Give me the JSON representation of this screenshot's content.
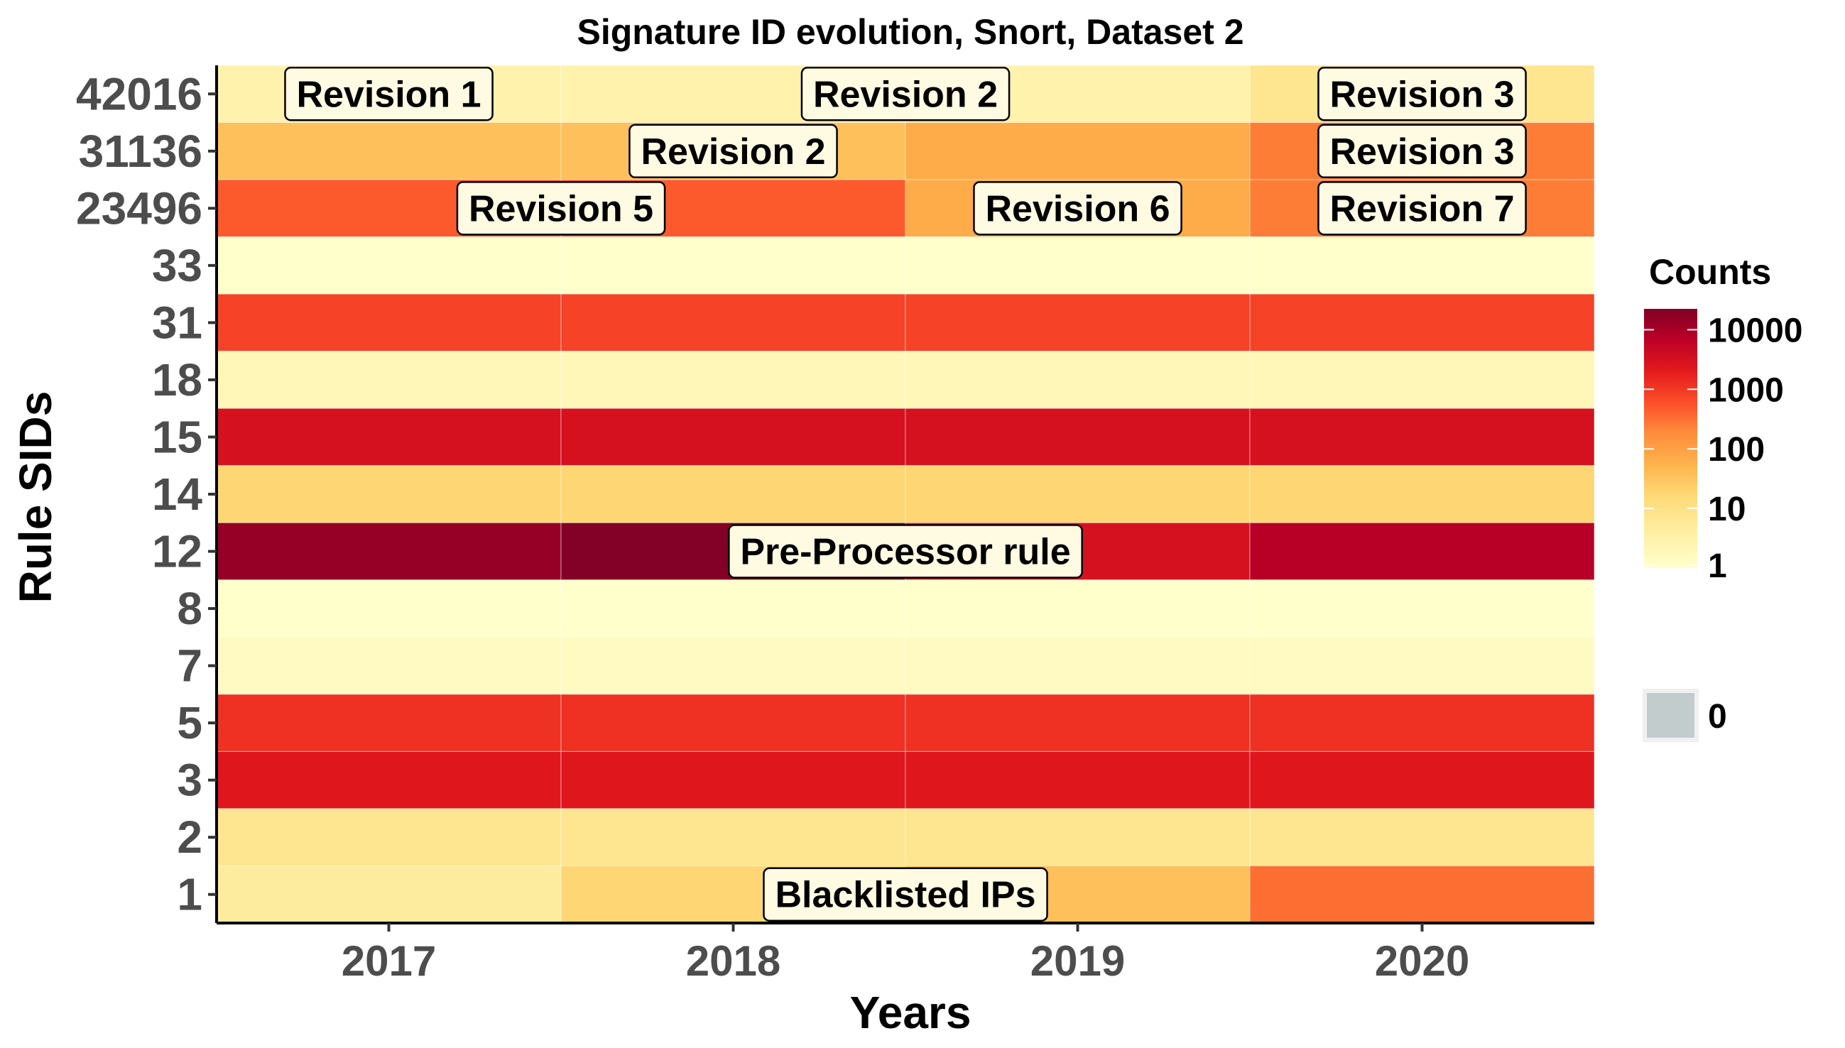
{
  "chart_data": {
    "type": "heatmap",
    "title": "Signature ID evolution, Snort, Dataset 2",
    "xlabel": "Years",
    "ylabel": "Rule SIDs",
    "x": [
      "2017",
      "2018",
      "2019",
      "2020"
    ],
    "y": [
      "42016",
      "31136",
      "23496",
      "33",
      "31",
      "18",
      "15",
      "14",
      "12",
      "8",
      "7",
      "5",
      "3",
      "2",
      "1"
    ],
    "values": [
      [
        3,
        3,
        3,
        8
      ],
      [
        40,
        40,
        80,
        300
      ],
      [
        600,
        600,
        80,
        300
      ],
      [
        1,
        1,
        1,
        1
      ],
      [
        1000,
        1000,
        1000,
        1000
      ],
      [
        2,
        2,
        2,
        2
      ],
      [
        4000,
        4000,
        4000,
        4000
      ],
      [
        20,
        20,
        20,
        20
      ],
      [
        20000,
        30000,
        4000,
        10000
      ],
      [
        1,
        1,
        1,
        1
      ],
      [
        1.5,
        1.5,
        1.5,
        1.5
      ],
      [
        1500,
        1500,
        1500,
        1500
      ],
      [
        3000,
        3000,
        3000,
        3000
      ],
      [
        8,
        8,
        8,
        8
      ],
      [
        5,
        20,
        40,
        400
      ]
    ],
    "color_scale": "log",
    "legend": {
      "title": "Counts",
      "ticks": [
        "10000",
        "1000",
        "100",
        "10",
        "1"
      ],
      "zero_label": "0",
      "zero_color": "#c3cccc",
      "placement": "right"
    },
    "annotations": [
      {
        "text": "Revision 1",
        "row": "42016",
        "x": "2017"
      },
      {
        "text": "Revision 2",
        "row": "42016",
        "x": "2018.5"
      },
      {
        "text": "Revision 3",
        "row": "42016",
        "x": "2020"
      },
      {
        "text": "Revision 2",
        "row": "31136",
        "x": "2018"
      },
      {
        "text": "Revision 3",
        "row": "31136",
        "x": "2020"
      },
      {
        "text": "Revision 5",
        "row": "23496",
        "x": "2017.5"
      },
      {
        "text": "Revision 6",
        "row": "23496",
        "x": "2019"
      },
      {
        "text": "Revision 7",
        "row": "23496",
        "x": "2020"
      },
      {
        "text": "Pre-Processor rule",
        "row": "12",
        "x": "2018.5"
      },
      {
        "text": "Blacklisted IPs",
        "row": "1",
        "x": "2018.5"
      }
    ],
    "grid": false
  }
}
